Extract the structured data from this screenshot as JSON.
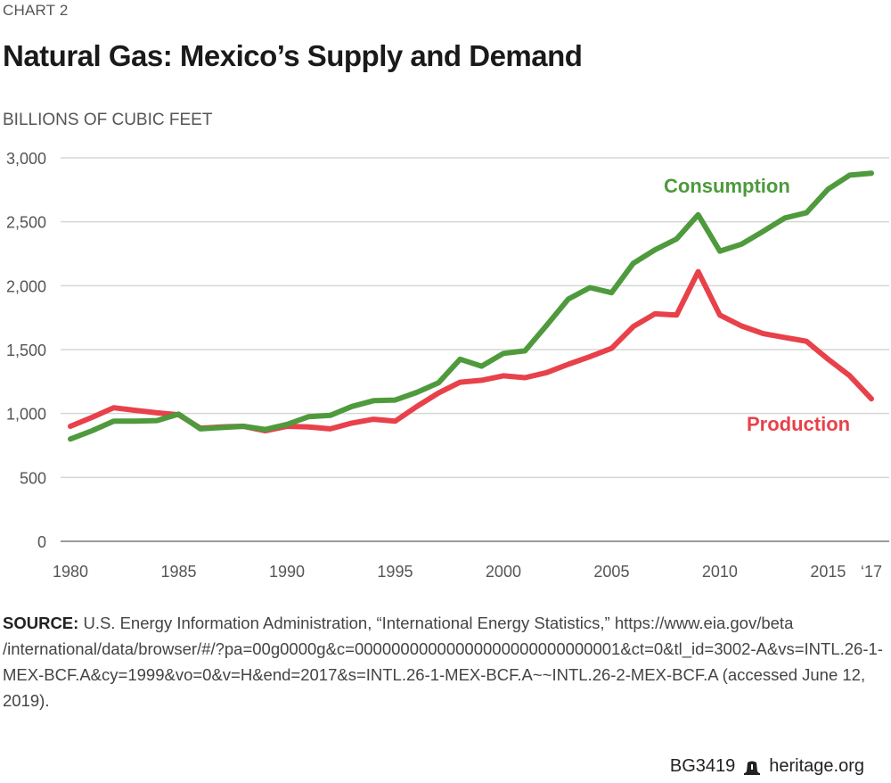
{
  "header": {
    "eyebrow": "CHART 2",
    "title": "Natural Gas: Mexico’s Supply and Demand",
    "unit": "BILLIONS OF CUBIC FEET"
  },
  "chart_data": {
    "type": "line",
    "title": "Natural Gas: Mexico’s Supply and Demand",
    "xlabel": "",
    "ylabel": "BILLIONS OF CUBIC FEET",
    "ylim": [
      0,
      3000
    ],
    "xlim": [
      1980,
      2017
    ],
    "grid": true,
    "y_ticks": [
      {
        "value": 0,
        "label": "0"
      },
      {
        "value": 500,
        "label": "500"
      },
      {
        "value": 1000,
        "label": "1,000"
      },
      {
        "value": 1500,
        "label": "1,500"
      },
      {
        "value": 2000,
        "label": "2,000"
      },
      {
        "value": 2500,
        "label": "2,500"
      },
      {
        "value": 3000,
        "label": "3,000"
      }
    ],
    "x_ticks": [
      {
        "value": 1980,
        "label": "1980"
      },
      {
        "value": 1985,
        "label": "1985"
      },
      {
        "value": 1990,
        "label": "1990"
      },
      {
        "value": 1995,
        "label": "1995"
      },
      {
        "value": 2000,
        "label": "2000"
      },
      {
        "value": 2005,
        "label": "2005"
      },
      {
        "value": 2010,
        "label": "2010"
      },
      {
        "value": 2015,
        "label": "2015"
      },
      {
        "value": 2017,
        "label": "‘17"
      }
    ],
    "x": [
      1980,
      1981,
      1982,
      1983,
      1984,
      1985,
      1986,
      1987,
      1988,
      1989,
      1990,
      1991,
      1992,
      1993,
      1994,
      1995,
      1996,
      1997,
      1998,
      1999,
      2000,
      2001,
      2002,
      2003,
      2004,
      2005,
      2006,
      2007,
      2008,
      2009,
      2010,
      2011,
      2012,
      2013,
      2014,
      2015,
      2016,
      2017
    ],
    "series": [
      {
        "name": "Production",
        "color": "#e8414a",
        "label_position": "below-right",
        "values": [
          900,
          970,
          1045,
          1025,
          1005,
          990,
          885,
          895,
          900,
          865,
          900,
          895,
          880,
          925,
          955,
          940,
          1055,
          1160,
          1245,
          1260,
          1295,
          1280,
          1320,
          1385,
          1445,
          1510,
          1680,
          1780,
          1770,
          2110,
          1770,
          1685,
          1625,
          1595,
          1565,
          1425,
          1295,
          1115
        ]
      },
      {
        "name": "Consumption",
        "color": "#4e9a3c",
        "label_position": "above-right",
        "values": [
          800,
          865,
          940,
          940,
          945,
          995,
          880,
          890,
          900,
          875,
          915,
          975,
          985,
          1055,
          1100,
          1105,
          1165,
          1240,
          1425,
          1370,
          1470,
          1490,
          1690,
          1895,
          1985,
          1945,
          2175,
          2280,
          2365,
          2555,
          2270,
          2325,
          2425,
          2530,
          2570,
          2755,
          2865,
          2880
        ]
      }
    ]
  },
  "source": {
    "label": "SOURCE:",
    "text": " U.S. Energy Information Administration, “International Energy Statistics,” https://www.eia.gov/beta /international/data/browser/#/?pa=00g0000g&c=00000000000000000000000000001&ct=0&tl_id=3002-A&vs=INTL.26-1-MEX-BCF.A&cy=1999&vo=0&v=H&end=2017&s=INTL.26-1-MEX-BCF.A~~INTL.26-2-MEX-BCF.A (accessed June 12, 2019)."
  },
  "footer": {
    "code": "BG3419",
    "icon": "liberty-bell-icon",
    "site": "heritage.org"
  }
}
